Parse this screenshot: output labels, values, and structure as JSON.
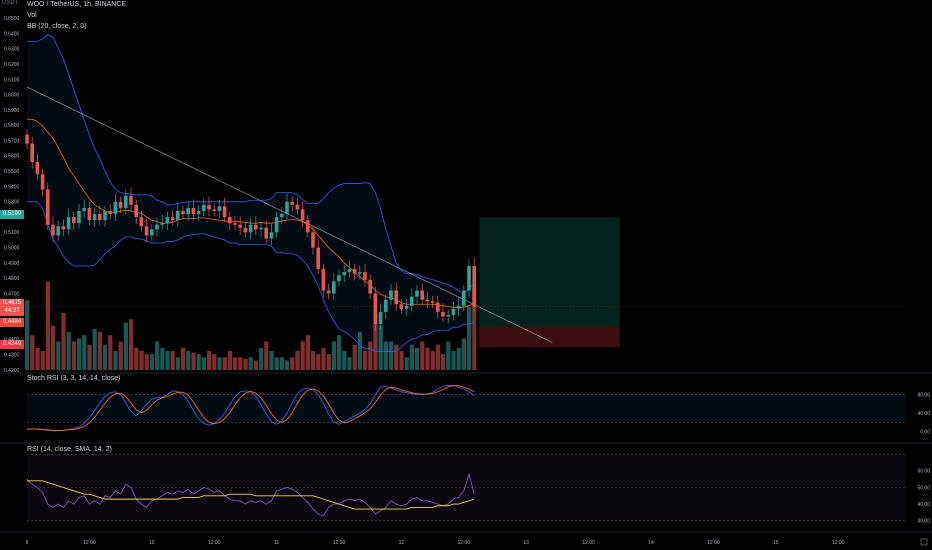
{
  "header": {
    "symbol_line": "WOO / TetherUS, 1h, BINANCE",
    "vol_label": "Vol",
    "bb_label": "BB (20, close, 2, 0)",
    "stoch_label": "Stoch RSI (3, 3, 14, 14, close)",
    "rsi_label": "RSI (14, close, SMA, 14, 2)",
    "quote_currency": "USDT"
  },
  "colors": {
    "up": "#26a69a",
    "down": "#ef5350",
    "bb": "#2962ff",
    "basis": "#ff6d00",
    "stoch_k": "#2962ff",
    "stoch_d": "#ff6d00",
    "rsi": "#7e57c2",
    "rsi_ma": "#fdd835",
    "trend": "#9598a1"
  },
  "price_badges": {
    "current": {
      "value": "0.5199",
      "color": "#26a69a"
    },
    "last": {
      "value": "0.4615",
      "countdown": "44:37",
      "color": "#ef5350"
    },
    "entry": {
      "value": "0.4484",
      "color": "#ef5350"
    },
    "stop": {
      "value": "0.4349",
      "color": "#ef5350"
    }
  },
  "position_tool": {
    "entry": 0.4484,
    "target": 0.5199,
    "stop": 0.4349,
    "start_bar": 87,
    "end_bar": 114
  },
  "trendline": {
    "x": [
      0,
      101
    ],
    "y": [
      0.605,
      0.438
    ]
  },
  "chart_data": {
    "type": "candlestick",
    "x_ticks": [
      {
        "bar": 0,
        "label": "9"
      },
      {
        "bar": 12,
        "label": "12:00"
      },
      {
        "bar": 24,
        "label": "10"
      },
      {
        "bar": 36,
        "label": "12:00"
      },
      {
        "bar": 48,
        "label": "11"
      },
      {
        "bar": 60,
        "label": "12:00"
      },
      {
        "bar": 72,
        "label": "12"
      },
      {
        "bar": 84,
        "label": "12:00"
      },
      {
        "bar": 96,
        "label": "13"
      },
      {
        "bar": 108,
        "label": "12:00"
      },
      {
        "bar": 120,
        "label": "14"
      },
      {
        "bar": 132,
        "label": "12:00"
      },
      {
        "bar": 144,
        "label": "15"
      },
      {
        "bar": 156,
        "label": "12:00"
      }
    ],
    "price_axis": {
      "range": [
        0.42,
        0.66
      ],
      "ticks": [
        "0.6500",
        "0.6400",
        "0.6300",
        "0.6200",
        "0.6100",
        "0.6000",
        "0.5900",
        "0.5800",
        "0.5700",
        "0.5600",
        "0.5500",
        "0.5400",
        "0.5300",
        "0.5200",
        "0.5100",
        "0.5000",
        "0.4900",
        "0.4800",
        "0.4700",
        "0.4600",
        "0.4500",
        "0.4400",
        "0.4300",
        "0.4200"
      ]
    },
    "close": [
      0.568,
      0.556,
      0.548,
      0.538,
      0.515,
      0.508,
      0.514,
      0.512,
      0.52,
      0.516,
      0.524,
      0.526,
      0.518,
      0.522,
      0.518,
      0.524,
      0.522,
      0.53,
      0.526,
      0.534,
      0.528,
      0.52,
      0.514,
      0.508,
      0.512,
      0.515,
      0.516,
      0.52,
      0.518,
      0.524,
      0.522,
      0.526,
      0.522,
      0.524,
      0.528,
      0.525,
      0.524,
      0.527,
      0.52,
      0.516,
      0.515,
      0.513,
      0.51,
      0.515,
      0.512,
      0.513,
      0.506,
      0.51,
      0.52,
      0.522,
      0.53,
      0.528,
      0.525,
      0.518,
      0.51,
      0.5,
      0.486,
      0.472,
      0.47,
      0.478,
      0.482,
      0.484,
      0.486,
      0.483,
      0.484,
      0.479,
      0.47,
      0.45,
      0.458,
      0.466,
      0.472,
      0.463,
      0.46,
      0.462,
      0.468,
      0.472,
      0.466,
      0.465,
      0.464,
      0.458,
      0.455,
      0.456,
      0.46,
      0.462,
      0.472,
      0.488,
      0.4615
    ],
    "volume": {
      "range": [
        0,
        300
      ],
      "values": [
        220,
        110,
        70,
        60,
        280,
        140,
        90,
        180,
        120,
        90,
        100,
        110,
        80,
        130,
        120,
        80,
        110,
        60,
        90,
        150,
        160,
        70,
        60,
        50,
        50,
        90,
        70,
        60,
        60,
        40,
        70,
        60,
        55,
        50,
        40,
        60,
        50,
        40,
        40,
        60,
        40,
        40,
        35,
        40,
        30,
        70,
        90,
        60,
        40,
        40,
        30,
        40,
        60,
        90,
        110,
        60,
        50,
        70,
        50,
        90,
        110,
        60,
        40,
        80,
        120,
        60,
        90,
        180,
        140,
        90,
        90,
        80,
        60,
        40,
        80,
        70,
        90,
        70,
        60,
        80,
        50,
        90,
        60,
        70,
        100,
        200,
        260
      ]
    },
    "bb": {
      "upper": [
        0.635,
        0.635,
        0.635,
        0.6365,
        0.6395,
        0.6375,
        0.6305,
        0.6235,
        0.6135,
        0.6035,
        0.5935,
        0.5835,
        0.5735,
        0.565,
        0.558,
        0.55,
        0.543,
        0.538,
        0.536,
        0.5355,
        0.535,
        0.5345,
        0.5345,
        0.5345,
        0.534,
        0.531,
        0.53,
        0.528,
        0.528,
        0.529,
        0.5295,
        0.53,
        0.53,
        0.53,
        0.53,
        0.53,
        0.53,
        0.53,
        0.53,
        0.53,
        0.53,
        0.53,
        0.53,
        0.531,
        0.531,
        0.531,
        0.531,
        0.532,
        0.536,
        0.536,
        0.536,
        0.536,
        0.5345,
        0.5315,
        0.529,
        0.529,
        0.529,
        0.532,
        0.536,
        0.539,
        0.541,
        0.542,
        0.542,
        0.542,
        0.542,
        0.5425,
        0.542,
        0.536,
        0.525,
        0.5125,
        0.501,
        0.49,
        0.485,
        0.483,
        0.483,
        0.4825,
        0.481,
        0.48,
        0.479,
        0.478,
        0.477,
        0.476,
        0.474,
        0.472,
        0.47,
        0.473,
        0.477
      ],
      "basis": [
        0.584,
        0.584,
        0.5825,
        0.5795,
        0.5755,
        0.5715,
        0.5655,
        0.559,
        0.552,
        0.547,
        0.542,
        0.537,
        0.532,
        0.528,
        0.526,
        0.524,
        0.523,
        0.523,
        0.524,
        0.5245,
        0.524,
        0.523,
        0.5225,
        0.52,
        0.518,
        0.517,
        0.516,
        0.516,
        0.5165,
        0.518,
        0.519,
        0.519,
        0.519,
        0.5195,
        0.5195,
        0.519,
        0.5185,
        0.518,
        0.5175,
        0.517,
        0.517,
        0.517,
        0.5165,
        0.516,
        0.516,
        0.5165,
        0.516,
        0.516,
        0.5165,
        0.5175,
        0.518,
        0.5185,
        0.518,
        0.517,
        0.515,
        0.512,
        0.508,
        0.504,
        0.5,
        0.497,
        0.494,
        0.49,
        0.487,
        0.484,
        0.481,
        0.478,
        0.476,
        0.472,
        0.4695,
        0.468,
        0.467,
        0.466,
        0.464,
        0.463,
        0.463,
        0.463,
        0.463,
        0.463,
        0.463,
        0.4625,
        0.462,
        0.4615,
        0.461,
        0.461,
        0.461,
        0.462,
        0.464
      ],
      "lower": [
        0.53,
        0.53,
        0.53,
        0.5255,
        0.5155,
        0.5055,
        0.5005,
        0.4945,
        0.4905,
        0.488,
        0.488,
        0.488,
        0.488,
        0.4885,
        0.492,
        0.496,
        0.499,
        0.501,
        0.505,
        0.507,
        0.507,
        0.506,
        0.5055,
        0.5045,
        0.503,
        0.503,
        0.503,
        0.504,
        0.504,
        0.505,
        0.507,
        0.508,
        0.5085,
        0.509,
        0.509,
        0.508,
        0.507,
        0.506,
        0.505,
        0.503,
        0.503,
        0.502,
        0.502,
        0.502,
        0.502,
        0.502,
        0.502,
        0.501,
        0.497,
        0.497,
        0.496,
        0.496,
        0.495,
        0.492,
        0.488,
        0.482,
        0.475,
        0.466,
        0.458,
        0.452,
        0.447,
        0.445,
        0.443,
        0.44,
        0.436,
        0.434,
        0.434,
        0.432,
        0.432,
        0.432,
        0.432,
        0.432,
        0.435,
        0.438,
        0.44,
        0.441,
        0.443,
        0.443,
        0.445,
        0.446,
        0.446,
        0.446,
        0.448,
        0.448,
        0.45,
        0.45,
        0.451
      ]
    },
    "stoch_rsi": {
      "range": [
        -20,
        120
      ],
      "ticks": [
        "80.00",
        "40.00",
        "0.00"
      ],
      "k": [
        5,
        6,
        5,
        4,
        3,
        2,
        2,
        3,
        5,
        7,
        10,
        18,
        30,
        45,
        62,
        76,
        84,
        86,
        80,
        62,
        44,
        34,
        45,
        60,
        70,
        74,
        74,
        80,
        88,
        86,
        80,
        66,
        46,
        28,
        18,
        14,
        18,
        26,
        40,
        58,
        76,
        86,
        88,
        86,
        76,
        58,
        38,
        22,
        16,
        22,
        40,
        62,
        82,
        92,
        94,
        90,
        80,
        62,
        38,
        20,
        16,
        22,
        28,
        34,
        40,
        48,
        60,
        80,
        96,
        98,
        94,
        90,
        86,
        84,
        82,
        80,
        80,
        82,
        84,
        92,
        98,
        100,
        100,
        96,
        92,
        86,
        78
      ],
      "d": [
        6,
        6,
        6,
        5,
        4,
        3,
        3,
        3,
        4,
        5,
        7,
        11,
        19,
        31,
        46,
        61,
        74,
        82,
        83,
        76,
        62,
        47,
        41,
        46,
        58,
        68,
        73,
        76,
        81,
        85,
        85,
        79,
        64,
        47,
        31,
        20,
        17,
        20,
        28,
        41,
        58,
        73,
        83,
        87,
        83,
        73,
        57,
        39,
        25,
        20,
        26,
        41,
        61,
        79,
        89,
        92,
        88,
        77,
        60,
        40,
        25,
        19,
        22,
        28,
        34,
        41,
        49,
        63,
        79,
        91,
        96,
        94,
        90,
        87,
        84,
        82,
        81,
        81,
        82,
        86,
        91,
        97,
        99,
        99,
        96,
        92,
        86
      ]
    },
    "rsi": {
      "range": [
        25,
        75
      ],
      "ticks": [
        "60.00",
        "50.00",
        "40.00",
        "30.00"
      ],
      "values": [
        55,
        52,
        50,
        47,
        40,
        38,
        40,
        38,
        42,
        40,
        44,
        45,
        40,
        42,
        40,
        45,
        44,
        48,
        46,
        52,
        50,
        43,
        40,
        38,
        42,
        43,
        45,
        47,
        46,
        48,
        47,
        49,
        46,
        48,
        50,
        49,
        47,
        48,
        45,
        43,
        42,
        42,
        40,
        42,
        41,
        42,
        40,
        42,
        48,
        49,
        50,
        49,
        47,
        44,
        41,
        37,
        34,
        33,
        38,
        40,
        40,
        42,
        43,
        42,
        43,
        41,
        38,
        34,
        36,
        38,
        42,
        40,
        39,
        40,
        43,
        44,
        42,
        42,
        41,
        40,
        39,
        40,
        43,
        44,
        48,
        58,
        46
      ],
      "ma": [
        54,
        54,
        54,
        54,
        53,
        52,
        51,
        50,
        49,
        48,
        47,
        46,
        46,
        45,
        44,
        43,
        43,
        43,
        43,
        43,
        43,
        43,
        43,
        43,
        43,
        43,
        43,
        43,
        43,
        43,
        44,
        44,
        44,
        44,
        45,
        45,
        45,
        45,
        45,
        46,
        46,
        46,
        46,
        46,
        45,
        45,
        45,
        45,
        45,
        45,
        45,
        45,
        45,
        45,
        45,
        45,
        44,
        43,
        42,
        41,
        40,
        39,
        38,
        37,
        37,
        37,
        37,
        37,
        37,
        37,
        37,
        37,
        37,
        37,
        38,
        38,
        38,
        38,
        38,
        39,
        39,
        39,
        40,
        40,
        41,
        42,
        43
      ]
    }
  }
}
